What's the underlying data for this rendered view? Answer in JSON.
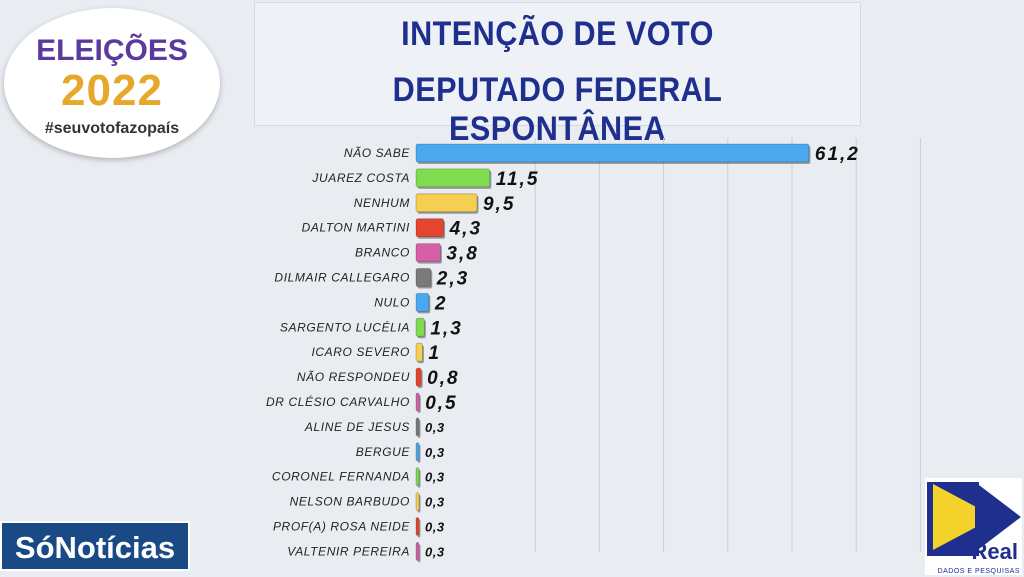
{
  "title": {
    "line1": "INTENÇÃO DE VOTO",
    "line2": "DEPUTADO FEDERAL ESPONTÂNEA"
  },
  "logos": {
    "eleicoes_word": "ELEIÇÕES",
    "eleicoes_year": "2022",
    "eleicoes_tagline": "#seuvotofazopaís",
    "sonoticias": "SóNotícias",
    "real_word": "Real",
    "real_sub": "DADOS E PESQUISAS"
  },
  "colors": {
    "title": "#1f2f8e",
    "series": [
      "#4aa8ef",
      "#7fdc4e",
      "#f6cf52",
      "#e5452f",
      "#d660a8",
      "#7a7a7a"
    ]
  },
  "chart_data": {
    "type": "bar",
    "orientation": "horizontal",
    "categories": [
      "NÃO SABE",
      "JUAREZ COSTA",
      "NENHUM",
      "DALTON MARTINI",
      "BRANCO",
      "DILMAIR CALLEGARO",
      "NULO",
      "SARGENTO LUCÉLIA",
      "ICARO SEVERO",
      "NÃO RESPONDEU",
      "DR CLÉSIO CARVALHO",
      "ALINE DE JESUS",
      "BERGUE",
      "CORONEL FERNANDA",
      "NELSON BARBUDO",
      "PROF(A) ROSA NEIDE",
      "VALTENIR PEREIRA"
    ],
    "values": [
      61.2,
      11.5,
      9.5,
      4.3,
      3.8,
      2.3,
      2,
      1.3,
      1,
      0.8,
      0.5,
      0.3,
      0.3,
      0.3,
      0.3,
      0.3,
      0.3
    ],
    "value_labels": [
      "61,2",
      "11,5",
      "9,5",
      "4,3",
      "3,8",
      "2,3",
      "2",
      "1,3",
      "1",
      "0,8",
      "0,5",
      "0,3",
      "0,3",
      "0,3",
      "0,3",
      "0,3",
      "0,3"
    ],
    "bar_colors": [
      "#4aa8ef",
      "#7fdc4e",
      "#f6cf52",
      "#e5452f",
      "#d660a8",
      "#7a7a7a",
      "#4aa8ef",
      "#7fdc4e",
      "#f6cf52",
      "#e5452f",
      "#d660a8",
      "#7a7a7a",
      "#4aa8ef",
      "#7fdc4e",
      "#f6cf52",
      "#e5452f",
      "#d660a8"
    ],
    "xlim": [
      0,
      70
    ],
    "grid": true,
    "legend": "none"
  }
}
